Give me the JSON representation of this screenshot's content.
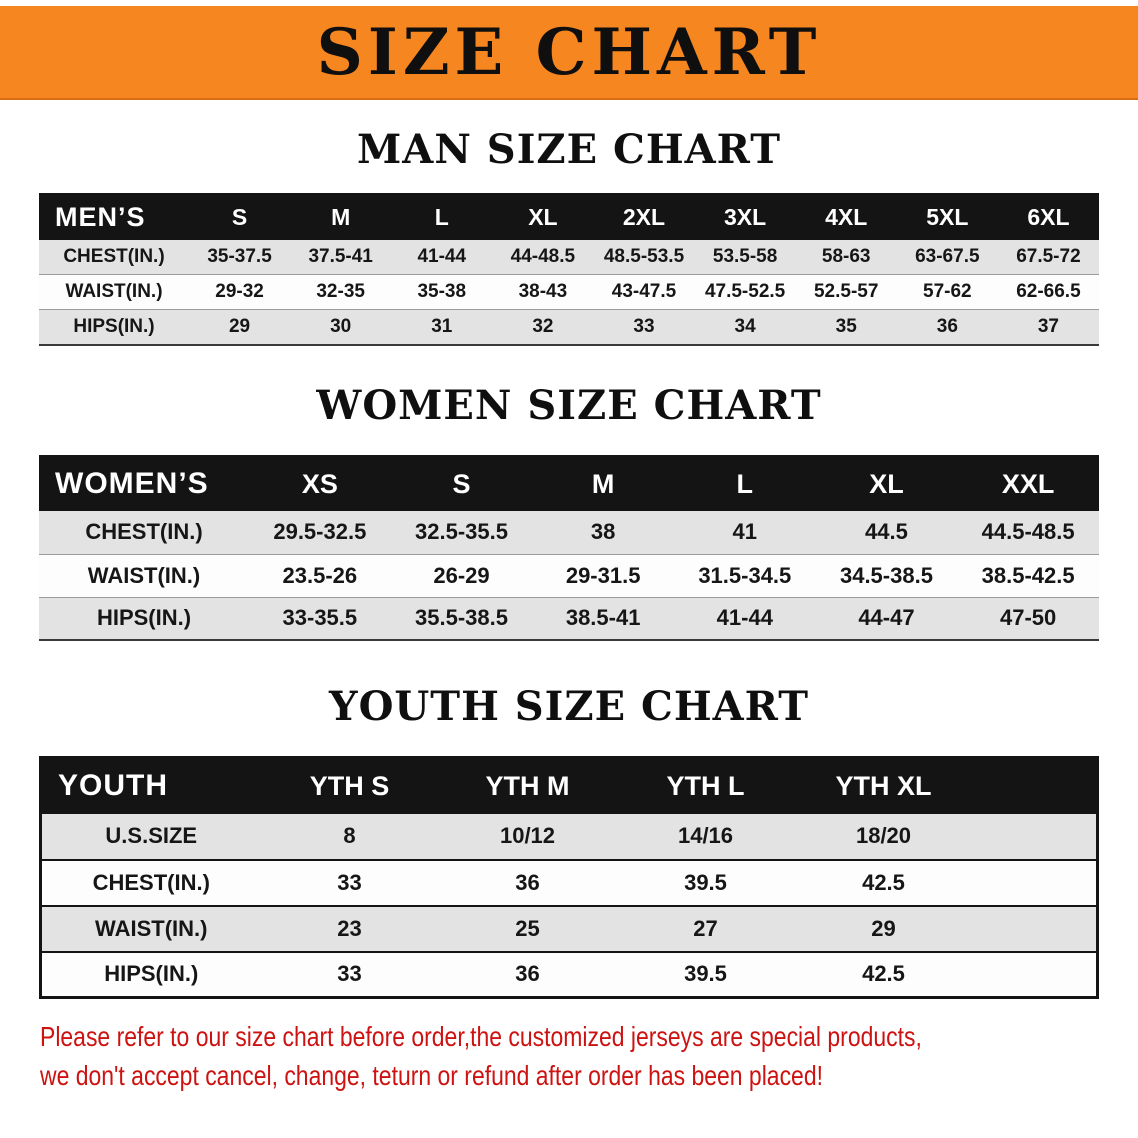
{
  "banner": {
    "title": "SIZE CHART"
  },
  "colors": {
    "banner_orange": "#f6861f",
    "table_header_black": "#141414",
    "row_shade_gray": "#e3e3e3",
    "note_red": "#cd1312"
  },
  "chart_data": [
    {
      "type": "table",
      "title": "MAN SIZE CHART",
      "corner_label": "MEN’S",
      "columns": [
        "S",
        "M",
        "L",
        "XL",
        "2XL",
        "3XL",
        "4XL",
        "5XL",
        "6XL"
      ],
      "rows": [
        {
          "label": "CHEST(IN.)",
          "values": [
            "35-37.5",
            "37.5-41",
            "41-44",
            "44-48.5",
            "48.5-53.5",
            "53.5-58",
            "58-63",
            "63-67.5",
            "67.5-72"
          ]
        },
        {
          "label": "WAIST(IN.)",
          "values": [
            "29-32",
            "32-35",
            "35-38",
            "38-43",
            "43-47.5",
            "47.5-52.5",
            "52.5-57",
            "57-62",
            "62-66.5"
          ]
        },
        {
          "label": "HIPS(IN.)",
          "values": [
            "29",
            "30",
            "31",
            "32",
            "33",
            "34",
            "35",
            "36",
            "37"
          ]
        }
      ]
    },
    {
      "type": "table",
      "title": "WOMEN SIZE CHART",
      "corner_label": "WOMEN’S",
      "columns": [
        "XS",
        "S",
        "M",
        "L",
        "XL",
        "XXL"
      ],
      "rows": [
        {
          "label": "CHEST(IN.)",
          "values": [
            "29.5-32.5",
            "32.5-35.5",
            "38",
            "41",
            "44.5",
            "44.5-48.5"
          ]
        },
        {
          "label": "WAIST(IN.)",
          "values": [
            "23.5-26",
            "26-29",
            "29-31.5",
            "31.5-34.5",
            "34.5-38.5",
            "38.5-42.5"
          ]
        },
        {
          "label": "HIPS(IN.)",
          "values": [
            "33-35.5",
            "35.5-38.5",
            "38.5-41",
            "41-44",
            "44-47",
            "47-50"
          ]
        }
      ]
    },
    {
      "type": "table",
      "title": "YOUTH SIZE CHART",
      "corner_label": "YOUTH",
      "columns": [
        "YTH S",
        "YTH M",
        "YTH L",
        "YTH XL"
      ],
      "trailing_spacer": true,
      "rows": [
        {
          "label": "U.S.SIZE",
          "values": [
            "8",
            "10/12",
            "14/16",
            "18/20"
          ]
        },
        {
          "label": "CHEST(IN.)",
          "values": [
            "33",
            "36",
            "39.5",
            "42.5"
          ]
        },
        {
          "label": "WAIST(IN.)",
          "values": [
            "23",
            "25",
            "27",
            "29"
          ]
        },
        {
          "label": "HIPS(IN.)",
          "values": [
            "33",
            "36",
            "39.5",
            "42.5"
          ]
        }
      ]
    }
  ],
  "footer": {
    "lines": [
      "Please refer to our size chart before order,the customized jerseys are special products,",
      "we don't accept cancel, change, teturn or refund after order has been placed!"
    ]
  }
}
